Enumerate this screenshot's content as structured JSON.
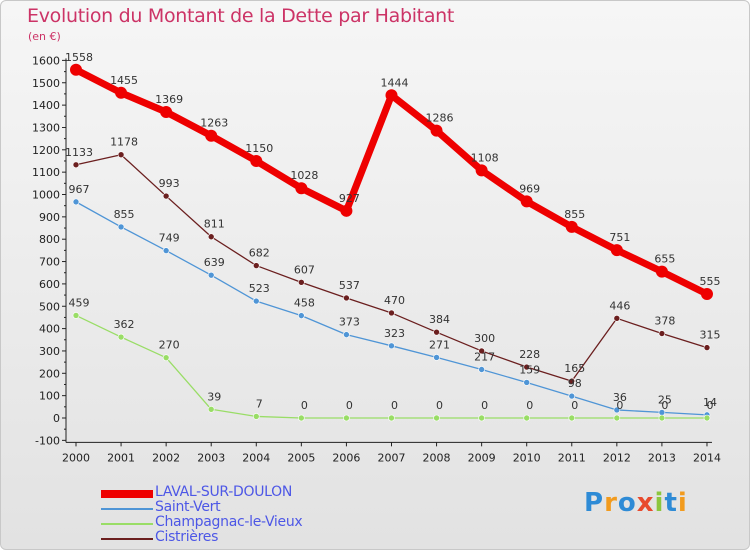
{
  "header": {
    "title": "Evolution du Montant de la Dette par Habitant",
    "unit": "(en €)"
  },
  "logo": {
    "letters": [
      "P",
      "r",
      "o",
      "x",
      "i",
      "t",
      "i"
    ],
    "colors": [
      "#2e8bd6",
      "#f29b1e",
      "#2e8bd6",
      "#e84a2d",
      "#8cc63f",
      "#2e8bd6",
      "#f29b1e"
    ]
  },
  "chart_data": {
    "type": "line",
    "title": "Evolution du Montant de la Dette par Habitant",
    "ylabel": "(en €)",
    "xlabel": "",
    "x": [
      "2000",
      "2001",
      "2002",
      "2003",
      "2004",
      "2005",
      "2006",
      "2007",
      "2008",
      "2009",
      "2010",
      "2011",
      "2012",
      "2013",
      "2014"
    ],
    "ylim": [
      -100,
      1600
    ],
    "yticks": [
      -100,
      0,
      100,
      200,
      300,
      400,
      500,
      600,
      700,
      800,
      900,
      1000,
      1100,
      1200,
      1300,
      1400,
      1500,
      1600
    ],
    "grid": false,
    "legend": "bottom-left",
    "series": [
      {
        "name": "LAVAL-SUR-DOULON",
        "color": "#ee0000",
        "values": [
          1558,
          1455,
          1369,
          1263,
          1150,
          1028,
          927,
          1444,
          1286,
          1108,
          969,
          855,
          751,
          655,
          555
        ],
        "labels": [
          "1558",
          "1455",
          "1369",
          "1263",
          "1150",
          "1028",
          "927",
          "1444",
          "1286",
          "1108",
          "969",
          "855",
          "751",
          "655",
          "555"
        ]
      },
      {
        "name": "Saint-Vert",
        "color": "#4f95d6",
        "values": [
          967,
          855,
          749,
          639,
          523,
          458,
          373,
          323,
          271,
          217,
          159,
          98,
          36,
          25,
          14
        ],
        "labels": [
          "967",
          "855",
          "749",
          "639",
          "523",
          "458",
          "373",
          "323",
          "271",
          "217",
          "159",
          "98",
          "36",
          "25",
          "14"
        ]
      },
      {
        "name": "Champagnac-le-Vieux",
        "color": "#99dd66",
        "values": [
          459,
          362,
          270,
          39,
          7,
          0,
          0,
          0,
          0,
          0,
          0,
          0,
          0,
          0,
          0
        ],
        "labels": [
          "459",
          "362",
          "270",
          "39",
          "7",
          "0",
          "0",
          "0",
          "0",
          "0",
          "0",
          "0",
          "0",
          "0",
          "0"
        ]
      },
      {
        "name": "Cistrières",
        "color": "#6b1f1f",
        "values": [
          1133,
          1178,
          993,
          811,
          682,
          607,
          537,
          470,
          384,
          300,
          228,
          165,
          446,
          378,
          315
        ],
        "labels": [
          "1133",
          "1178",
          "993",
          "811",
          "682",
          "607",
          "537",
          "470",
          "384",
          "300",
          "228",
          "165",
          "446",
          "378",
          "315"
        ]
      }
    ]
  }
}
